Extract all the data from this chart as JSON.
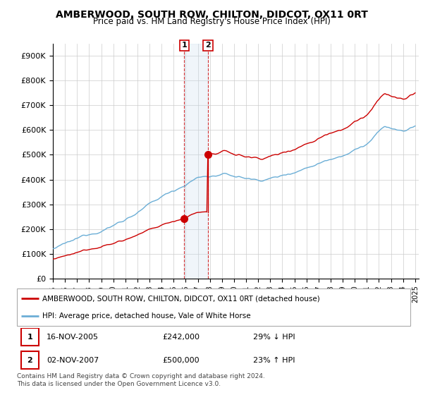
{
  "title": "AMBERWOOD, SOUTH ROW, CHILTON, DIDCOT, OX11 0RT",
  "subtitle": "Price paid vs. HM Land Registry's House Price Index (HPI)",
  "legend_entry1": "AMBERWOOD, SOUTH ROW, CHILTON, DIDCOT, OX11 0RT (detached house)",
  "legend_entry2": "HPI: Average price, detached house, Vale of White Horse",
  "transaction1_date": "16-NOV-2005",
  "transaction1_price": "£242,000",
  "transaction1_hpi": "29% ↓ HPI",
  "transaction1_year": 2005.88,
  "transaction1_value": 242000,
  "transaction2_date": "02-NOV-2007",
  "transaction2_price": "£500,000",
  "transaction2_hpi": "23% ↑ HPI",
  "transaction2_year": 2007.84,
  "transaction2_value": 500000,
  "copyright": "Contains HM Land Registry data © Crown copyright and database right 2024.\nThis data is licensed under the Open Government Licence v3.0.",
  "hpi_color": "#6baed6",
  "price_color": "#cc0000",
  "shade_color": "#c6dbef",
  "background_color": "#ffffff",
  "grid_color": "#cccccc",
  "ylim": [
    0,
    950000
  ],
  "yticks": [
    0,
    100000,
    200000,
    300000,
    400000,
    500000,
    600000,
    700000,
    800000,
    900000
  ],
  "ytick_labels": [
    "£0",
    "£100K",
    "£200K",
    "£300K",
    "£400K",
    "£500K",
    "£600K",
    "£700K",
    "£800K",
    "£900K"
  ],
  "xlim_start": 1995,
  "xlim_end": 2025.3
}
